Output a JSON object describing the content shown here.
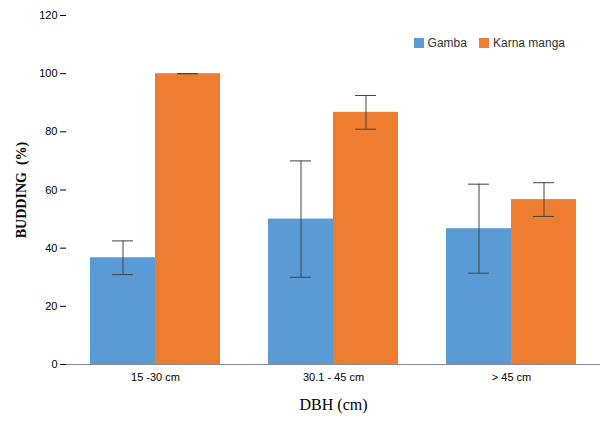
{
  "chart_data": {
    "type": "bar",
    "x_label": "DBH (cm)",
    "y_label": "BUDDING  (%)",
    "categories": [
      "15 -30 cm",
      "30.1 - 45 cm",
      "> 45 cm"
    ],
    "series": [
      {
        "name": "Gamba",
        "color": "#5b9bd5",
        "values": [
          36.7,
          50,
          46.7
        ],
        "errors": [
          5.8,
          20,
          15.3
        ]
      },
      {
        "name": "Karna manga",
        "color": "#ed7d31",
        "values": [
          100,
          86.7,
          56.7
        ],
        "errors": [
          0,
          5.8,
          5.8
        ]
      }
    ],
    "ylim": [
      0,
      120
    ],
    "yticks": [
      0,
      20,
      40,
      60,
      80,
      100,
      120
    ],
    "grid": false,
    "legend": "top-right"
  }
}
